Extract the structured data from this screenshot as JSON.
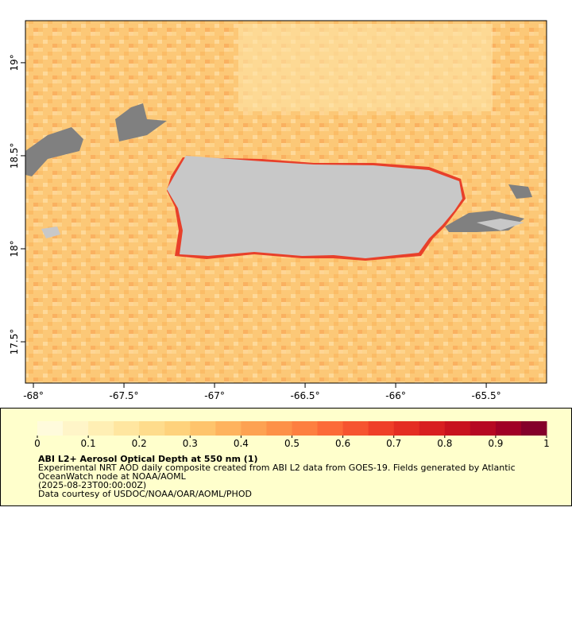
{
  "map": {
    "xlim": [
      -68.044,
      -65.167
    ],
    "ylim": [
      17.278,
      19.226
    ],
    "xticks": [
      {
        "value": -68,
        "label": "-68°"
      },
      {
        "value": -67.5,
        "label": "-67.5°"
      },
      {
        "value": -67,
        "label": "-67°"
      },
      {
        "value": -66.5,
        "label": "-66.5°"
      },
      {
        "value": -66,
        "label": "-66°"
      },
      {
        "value": -65.5,
        "label": "-65.5°"
      }
    ],
    "yticks": [
      {
        "value": 19,
        "label": "19°"
      },
      {
        "value": 18.5,
        "label": "18.5°"
      },
      {
        "value": 18,
        "label": "18°"
      },
      {
        "value": 17.5,
        "label": "17.5°"
      }
    ]
  },
  "colorbar": {
    "lim": [
      0,
      1
    ],
    "ticks": [
      0,
      0.1,
      0.2,
      0.3,
      0.4,
      0.5,
      0.6,
      0.7,
      0.8,
      0.9,
      1
    ],
    "colors": [
      "#fffbdc",
      "#fff5c8",
      "#ffefb4",
      "#ffe6a0",
      "#fedc8c",
      "#fed27c",
      "#fec46c",
      "#feb35e",
      "#fda252",
      "#fd9148",
      "#fd7f40",
      "#fc6a38",
      "#f65430",
      "#ef3f28",
      "#e42d22",
      "#d81f20",
      "#c8121e",
      "#b60822",
      "#a00026",
      "#84002a"
    ]
  },
  "legend": {
    "title": "ABI L2+ Aerosol Optical Depth at 550 nm (1)",
    "lines": [
      "Experimental NRT AOD daily composite created from ABI L2 data from GOES-19. Fields generated by Atlantic",
      "OceanWatch node at NOAA/AOML",
      "(2025-08-23T00:00:00Z)",
      "Data courtesy of USDOC/NOAA/OAR/AOML/PHOD"
    ]
  }
}
